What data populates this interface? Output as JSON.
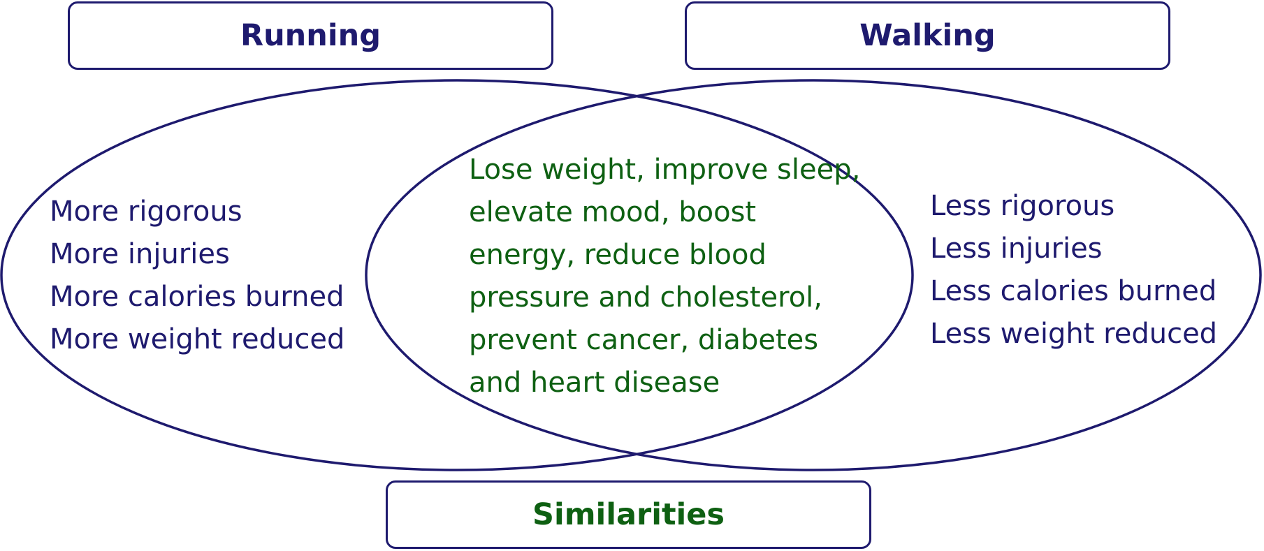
{
  "colors": {
    "outline": "#1e1a6e",
    "difference_text": "#1e1a6e",
    "similarity_text": "#0e6012",
    "background": "#ffffff"
  },
  "running": {
    "title": "Running",
    "items": [
      "More rigorous",
      "More injuries",
      "More calories burned",
      "More weight reduced"
    ]
  },
  "walking": {
    "title": "Walking",
    "items": [
      "Less rigorous",
      "Less injuries",
      "Less calories burned",
      "Less weight reduced"
    ]
  },
  "similarities": {
    "title": "Similarities",
    "lines": [
      "Lose weight, improve sleep,",
      "elevate mood, boost",
      "energy, reduce blood",
      "pressure and cholesterol,",
      "prevent cancer, diabetes",
      "and heart disease"
    ]
  }
}
